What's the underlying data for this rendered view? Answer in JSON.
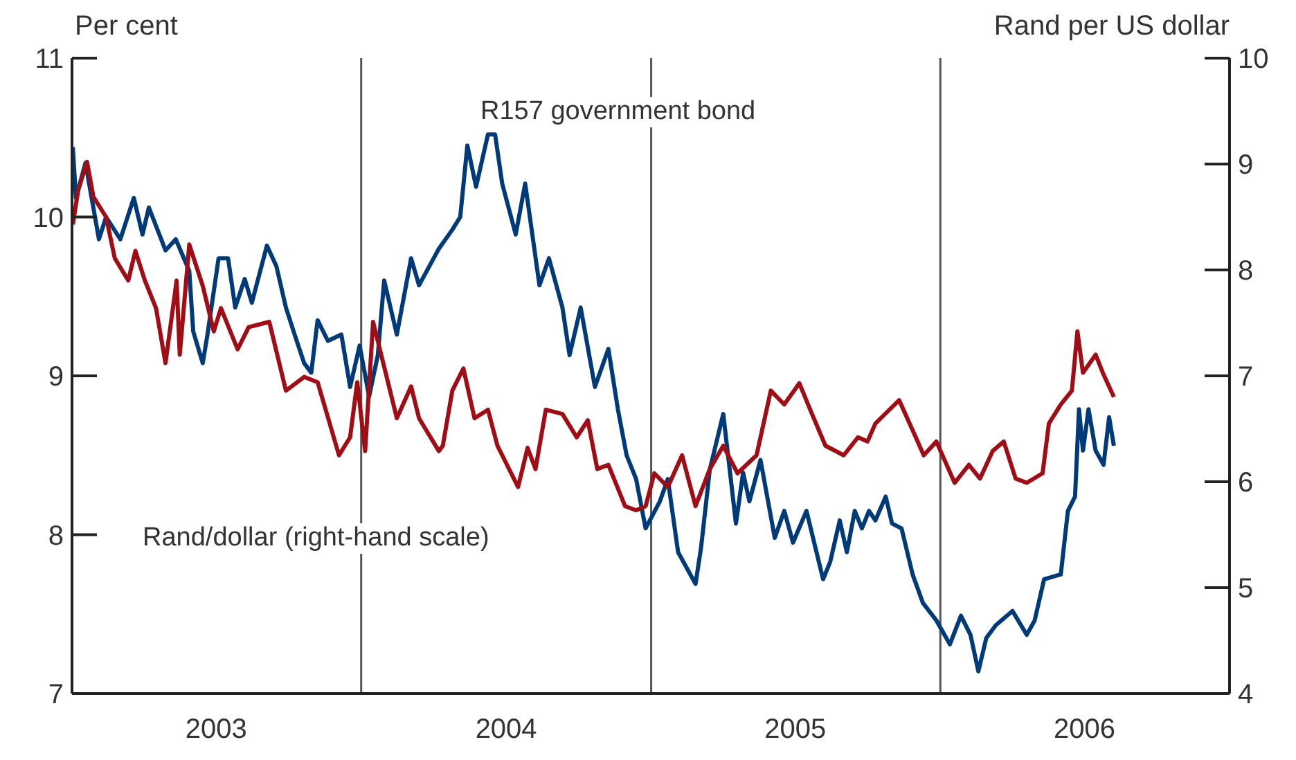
{
  "chart_data": {
    "type": "line",
    "ylabel": "Per cent",
    "y2label": "Rand per US dollar",
    "xlim": [
      "2003-01-01",
      "2007-01-01"
    ],
    "xticks": [
      {
        "value": "2003-07-02",
        "label": "2003"
      },
      {
        "value": "2004-07-02",
        "label": "2004"
      },
      {
        "value": "2005-07-02",
        "label": "2005"
      },
      {
        "value": "2006-07-02",
        "label": "2006"
      }
    ],
    "ylim": [
      7,
      11
    ],
    "yticks": [
      7,
      8,
      9,
      10,
      11
    ],
    "y2lim": [
      4,
      10
    ],
    "y2ticks": [
      4,
      5,
      6,
      7,
      8,
      9,
      10
    ],
    "ref_lines": [
      {
        "axis": "x",
        "value": "2004-01-01",
        "color": "#555555"
      },
      {
        "axis": "x",
        "value": "2005-01-01",
        "color": "#555555"
      },
      {
        "axis": "x",
        "value": "2006-01-01",
        "color": "#555555"
      }
    ],
    "series": [
      {
        "name": "R157 government bond",
        "color": "#003a78",
        "x": [
          "2003-01-02",
          "2003-01-06",
          "2003-01-18",
          "2003-02-04",
          "2003-02-13",
          "2003-03-03",
          "2003-03-20",
          "2003-03-31",
          "2003-04-08",
          "2003-04-29",
          "2003-05-12",
          "2003-05-29",
          "2003-06-03",
          "2003-06-15",
          "2003-06-21",
          "2003-07-05",
          "2003-07-17",
          "2003-07-26",
          "2003-08-07",
          "2003-08-16",
          "2003-09-04",
          "2003-09-16",
          "2003-09-28",
          "2003-10-09",
          "2003-10-21",
          "2003-10-30",
          "2003-11-07",
          "2003-11-20",
          "2003-12-07",
          "2003-12-18",
          "2003-12-30",
          "2004-01-11",
          "2004-01-22",
          "2004-01-30",
          "2004-02-15",
          "2004-03-04",
          "2004-03-14",
          "2004-04-08",
          "2004-04-25",
          "2004-05-05",
          "2004-05-14",
          "2004-05-25",
          "2004-06-09",
          "2004-06-18",
          "2004-06-27",
          "2004-07-14",
          "2004-07-26",
          "2004-08-13",
          "2004-08-25",
          "2004-09-11",
          "2004-09-20",
          "2004-10-04",
          "2004-10-22",
          "2004-11-08",
          "2004-11-20",
          "2004-12-01",
          "2004-12-13",
          "2004-12-25",
          "2005-01-12",
          "2005-01-22",
          "2005-02-04",
          "2005-02-26",
          "2005-03-05",
          "2005-03-16",
          "2005-04-02",
          "2005-04-18",
          "2005-04-27",
          "2005-05-05",
          "2005-05-19",
          "2005-06-06",
          "2005-06-18",
          "2005-06-29",
          "2005-07-16",
          "2005-08-06",
          "2005-08-15",
          "2005-08-27",
          "2005-09-05",
          "2005-09-15",
          "2005-09-24",
          "2005-10-03",
          "2005-10-11",
          "2005-10-24",
          "2005-11-01",
          "2005-11-13",
          "2005-11-27",
          "2005-12-10",
          "2005-12-27",
          "2006-01-13",
          "2006-01-27",
          "2006-02-08",
          "2006-02-18",
          "2006-02-28",
          "2006-03-12",
          "2006-04-02",
          "2006-04-20",
          "2006-04-30",
          "2006-05-12",
          "2006-06-02",
          "2006-06-11",
          "2006-06-20",
          "2006-06-25",
          "2006-06-30",
          "2006-07-07",
          "2006-07-16",
          "2006-07-26",
          "2006-08-02",
          "2006-08-08"
        ],
        "values": [
          10.44,
          10.12,
          10.34,
          9.86,
          10.0,
          9.86,
          10.12,
          9.89,
          10.06,
          9.79,
          9.86,
          9.66,
          9.28,
          9.08,
          9.26,
          9.74,
          9.74,
          9.43,
          9.61,
          9.46,
          9.82,
          9.69,
          9.43,
          9.26,
          9.08,
          9.02,
          9.35,
          9.22,
          9.26,
          8.93,
          9.19,
          8.87,
          9.13,
          9.6,
          9.26,
          9.74,
          9.57,
          9.8,
          9.92,
          10.0,
          10.45,
          10.19,
          10.52,
          10.52,
          10.21,
          9.89,
          10.21,
          9.57,
          9.74,
          9.43,
          9.13,
          9.43,
          8.93,
          9.17,
          8.79,
          8.5,
          8.35,
          8.04,
          8.21,
          8.35,
          7.89,
          7.69,
          7.92,
          8.41,
          8.76,
          8.07,
          8.39,
          8.21,
          8.47,
          7.98,
          8.15,
          7.95,
          8.15,
          7.72,
          7.83,
          8.09,
          7.89,
          8.15,
          8.04,
          8.15,
          8.09,
          8.24,
          8.07,
          8.04,
          7.75,
          7.57,
          7.46,
          7.31,
          7.49,
          7.37,
          7.14,
          7.35,
          7.43,
          7.52,
          7.37,
          7.46,
          7.72,
          7.75,
          8.15,
          8.24,
          8.79,
          8.53,
          8.79,
          8.53,
          8.44,
          8.74,
          8.56
        ]
      },
      {
        "name": "Rand/dollar (right-hand scale)",
        "color": "#a00d14",
        "axis": "y2",
        "x": [
          "2003-01-02",
          "2003-01-09",
          "2003-01-20",
          "2003-01-28",
          "2003-02-13",
          "2003-02-24",
          "2003-03-13",
          "2003-03-22",
          "2003-04-03",
          "2003-04-17",
          "2003-04-29",
          "2003-05-13",
          "2003-05-17",
          "2003-05-29",
          "2003-06-15",
          "2003-06-29",
          "2003-07-08",
          "2003-07-29",
          "2003-08-12",
          "2003-09-07",
          "2003-09-28",
          "2003-10-21",
          "2003-11-07",
          "2003-12-04",
          "2003-12-18",
          "2003-12-27",
          "2004-01-06",
          "2004-01-16",
          "2004-02-15",
          "2004-03-04",
          "2004-03-14",
          "2004-04-08",
          "2004-04-13",
          "2004-04-25",
          "2004-05-09",
          "2004-05-23",
          "2004-06-09",
          "2004-06-21",
          "2004-07-17",
          "2004-07-29",
          "2004-08-08",
          "2004-08-21",
          "2004-09-11",
          "2004-09-29",
          "2004-10-13",
          "2004-10-25",
          "2004-11-08",
          "2004-11-29",
          "2004-12-13",
          "2004-12-25",
          "2005-01-05",
          "2005-01-22",
          "2005-02-09",
          "2005-02-26",
          "2005-03-16",
          "2005-04-02",
          "2005-04-20",
          "2005-05-14",
          "2005-06-01",
          "2005-06-18",
          "2005-07-07",
          "2005-07-23",
          "2005-08-09",
          "2005-09-01",
          "2005-09-19",
          "2005-10-01",
          "2005-10-11",
          "2005-11-10",
          "2005-12-01",
          "2005-12-11",
          "2005-12-27",
          "2006-01-19",
          "2006-02-06",
          "2006-02-20",
          "2006-03-08",
          "2006-03-22",
          "2006-04-06",
          "2006-04-20",
          "2006-05-10",
          "2006-05-18",
          "2006-06-02",
          "2006-06-16",
          "2006-06-23",
          "2006-06-30",
          "2006-07-16",
          "2006-07-25",
          "2006-08-08"
        ],
        "values": [
          8.43,
          8.76,
          9.02,
          8.69,
          8.5,
          8.11,
          7.9,
          8.18,
          7.9,
          7.64,
          7.12,
          7.9,
          7.2,
          8.24,
          7.85,
          7.42,
          7.64,
          7.25,
          7.46,
          7.51,
          6.86,
          6.99,
          6.94,
          6.25,
          6.42,
          6.94,
          6.29,
          7.51,
          6.6,
          6.9,
          6.6,
          6.29,
          6.34,
          6.86,
          7.07,
          6.6,
          6.68,
          6.34,
          5.95,
          6.32,
          6.12,
          6.68,
          6.64,
          6.42,
          6.58,
          6.12,
          6.16,
          5.77,
          5.73,
          5.77,
          6.08,
          5.95,
          6.25,
          5.77,
          6.12,
          6.34,
          6.08,
          6.25,
          6.86,
          6.73,
          6.93,
          6.64,
          6.34,
          6.25,
          6.42,
          6.38,
          6.55,
          6.77,
          6.42,
          6.25,
          6.38,
          5.99,
          6.16,
          6.03,
          6.29,
          6.38,
          6.03,
          5.99,
          6.08,
          6.55,
          6.73,
          6.86,
          7.42,
          7.03,
          7.2,
          7.03,
          6.8
        ]
      }
    ]
  }
}
